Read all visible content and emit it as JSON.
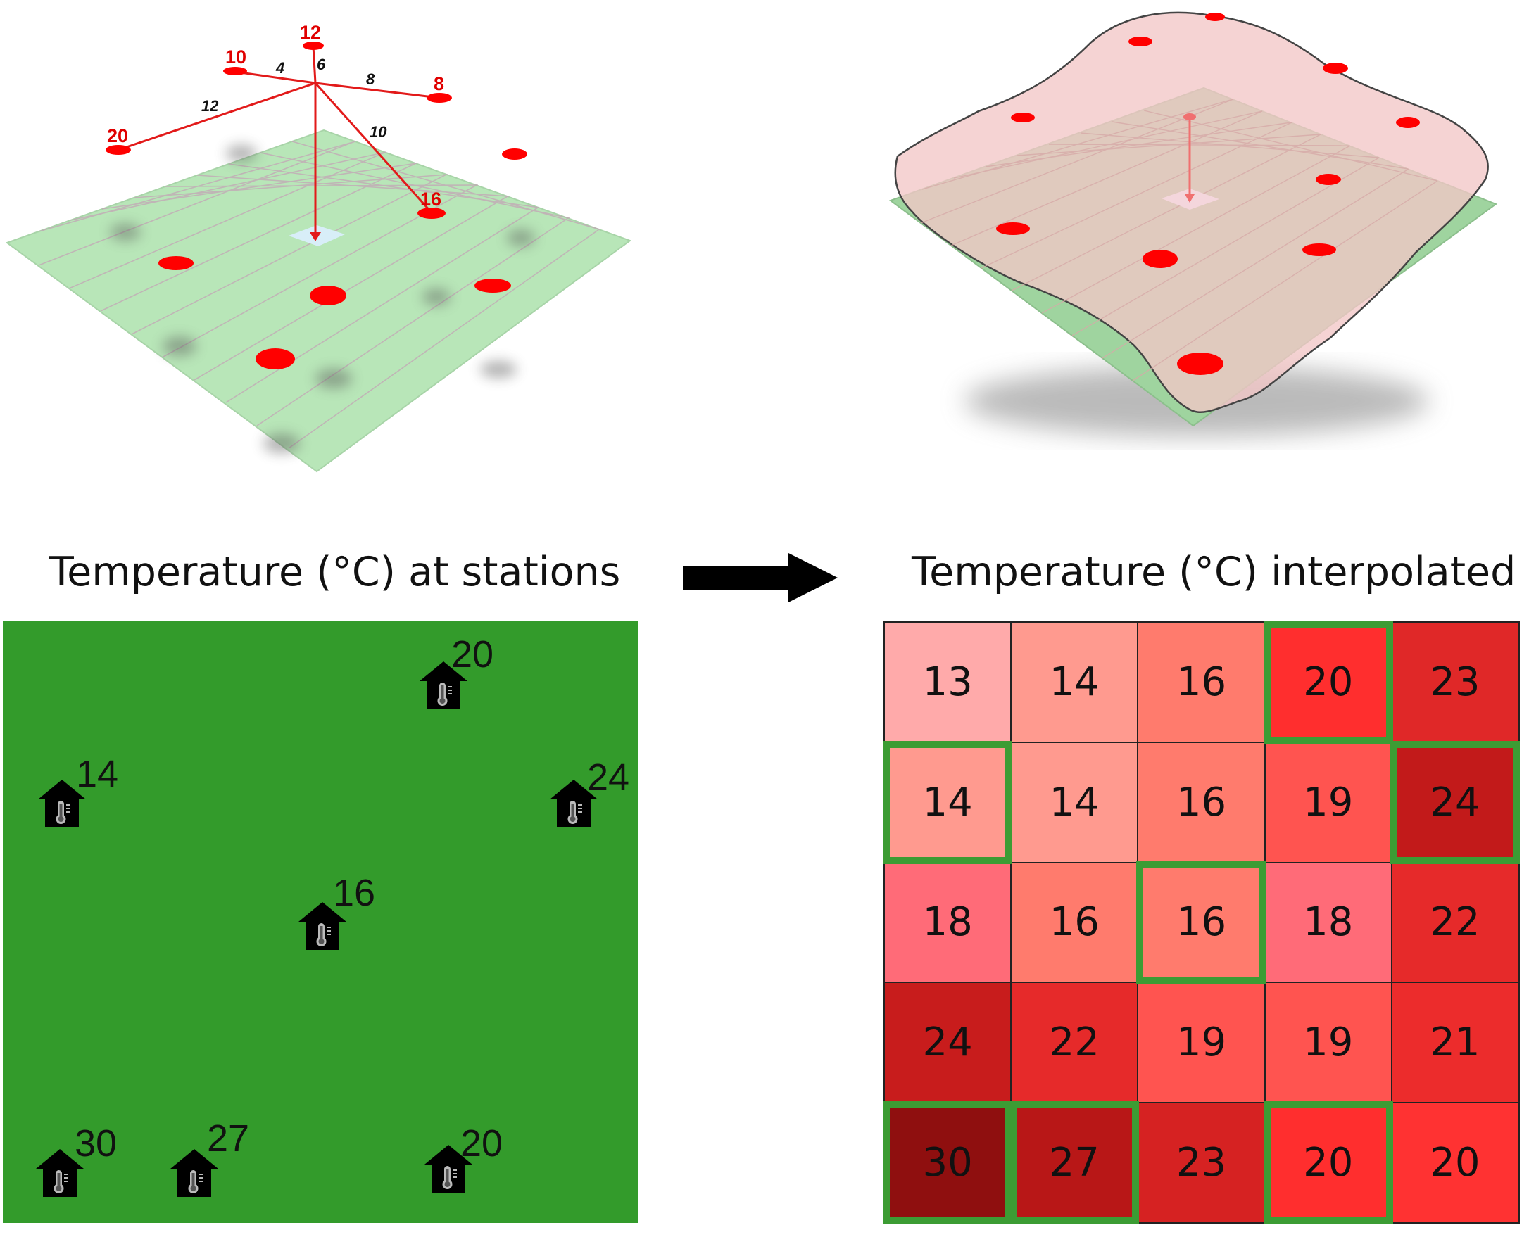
{
  "top_left_diagram": {
    "neighbor_values": [
      "20",
      "10",
      "12",
      "8",
      "16"
    ],
    "distances": [
      "12",
      "4",
      "6",
      "8",
      "10"
    ]
  },
  "titles": {
    "left": "Temperature (°C) at stations",
    "right": "Temperature (°C) interpolated"
  },
  "stations": [
    {
      "value": "20"
    },
    {
      "value": "14"
    },
    {
      "value": "24"
    },
    {
      "value": "16"
    },
    {
      "value": "30"
    },
    {
      "value": "27"
    },
    {
      "value": "20"
    }
  ],
  "grid": {
    "rows": [
      [
        {
          "v": "13",
          "color": "#ffaaaa",
          "station": false
        },
        {
          "v": "14",
          "color": "#ff9a8f",
          "station": false
        },
        {
          "v": "16",
          "color": "#ff7b6d",
          "station": false
        },
        {
          "v": "20",
          "color": "#ff2e2e",
          "station": true
        },
        {
          "v": "23",
          "color": "#e02828",
          "station": false
        }
      ],
      [
        {
          "v": "14",
          "color": "#ff9a8f",
          "station": true
        },
        {
          "v": "14",
          "color": "#ff9a8f",
          "station": false
        },
        {
          "v": "16",
          "color": "#ff7b6d",
          "station": false
        },
        {
          "v": "19",
          "color": "#ff5450",
          "station": false
        },
        {
          "v": "24",
          "color": "#c21a1a",
          "station": true
        }
      ],
      [
        {
          "v": "18",
          "color": "#ff6b78",
          "station": false
        },
        {
          "v": "16",
          "color": "#ff7b6d",
          "station": false
        },
        {
          "v": "16",
          "color": "#ff7b6d",
          "station": true
        },
        {
          "v": "18",
          "color": "#ff6b78",
          "station": false
        },
        {
          "v": "22",
          "color": "#e62a2a",
          "station": false
        }
      ],
      [
        {
          "v": "24",
          "color": "#c81c1c",
          "station": false
        },
        {
          "v": "22",
          "color": "#e62a2a",
          "station": false
        },
        {
          "v": "19",
          "color": "#ff5450",
          "station": false
        },
        {
          "v": "19",
          "color": "#ff5450",
          "station": false
        },
        {
          "v": "21",
          "color": "#ec2c2c",
          "station": false
        }
      ],
      [
        {
          "v": "30",
          "color": "#8f0f0f",
          "station": true
        },
        {
          "v": "27",
          "color": "#b81717",
          "station": true
        },
        {
          "v": "23",
          "color": "#d62222",
          "station": false
        },
        {
          "v": "20",
          "color": "#ff2e2e",
          "station": true
        },
        {
          "v": "20",
          "color": "#ff3232",
          "station": false
        }
      ]
    ]
  }
}
